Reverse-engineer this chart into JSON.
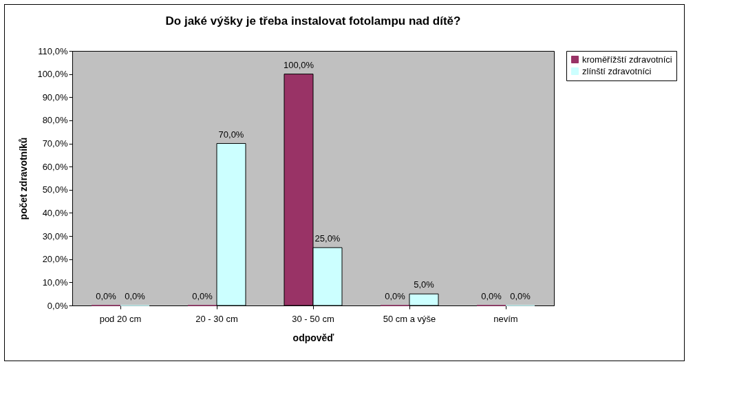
{
  "chart_data": {
    "type": "bar",
    "title": "Do jaké výšky je třeba instalovat fotolampu nad dítě?",
    "xlabel": "odpověď",
    "ylabel": "počet zdravotníků",
    "categories": [
      "pod 20 cm",
      "20 - 30 cm",
      "30 - 50 cm",
      "50 cm a výše",
      "nevím"
    ],
    "series": [
      {
        "name": "kroměřížští zdravotníci",
        "color": "#993366",
        "values": [
          0,
          0,
          100,
          0,
          0
        ],
        "value_labels": [
          "0,0%",
          "0,0%",
          "100,0%",
          "0,0%",
          "0,0%"
        ]
      },
      {
        "name": "zlínští zdravotníci",
        "color": "#ccffff",
        "values": [
          0,
          70,
          25,
          5,
          0
        ],
        "value_labels": [
          "0,0%",
          "70,0%",
          "25,0%",
          "5,0%",
          "0,0%"
        ]
      }
    ],
    "ylim": [
      0,
      110
    ],
    "yticks": [
      {
        "value": 0,
        "label": "0,0%"
      },
      {
        "value": 10,
        "label": "10,0%"
      },
      {
        "value": 20,
        "label": "20,0%"
      },
      {
        "value": 30,
        "label": "30,0%"
      },
      {
        "value": 40,
        "label": "40,0%"
      },
      {
        "value": 50,
        "label": "50,0%"
      },
      {
        "value": 60,
        "label": "60,0%"
      },
      {
        "value": 70,
        "label": "70,0%"
      },
      {
        "value": 80,
        "label": "80,0%"
      },
      {
        "value": 90,
        "label": "90,0%"
      },
      {
        "value": 100,
        "label": "100,0%"
      },
      {
        "value": 110,
        "label": "110,0%"
      }
    ],
    "legend": "right"
  }
}
